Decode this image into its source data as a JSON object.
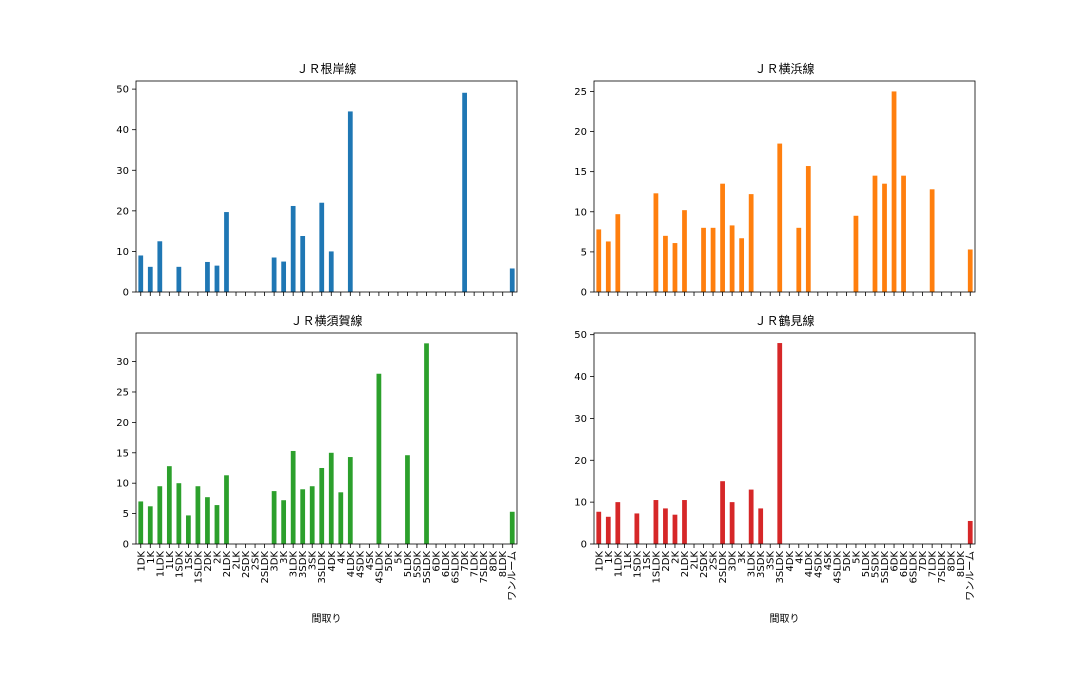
{
  "chart_data": {
    "type": "bar",
    "layout": "2x2 subplots, shared x axis",
    "xlabel": "間取り",
    "categories": [
      "1DK",
      "1K",
      "1LDK",
      "1LK",
      "1SDK",
      "1SK",
      "1SLDK",
      "2DK",
      "2K",
      "2LDK",
      "2LK",
      "2SDK",
      "2SK",
      "2SLDK",
      "3DK",
      "3K",
      "3LDK",
      "3SDK",
      "3SK",
      "3SLDK",
      "4DK",
      "4K",
      "4LDK",
      "4SDK",
      "4SK",
      "4SLDK",
      "5DK",
      "5K",
      "5LDK",
      "5SDK",
      "5SLDK",
      "6DK",
      "6LDK",
      "6SLDK",
      "7DK",
      "7LDK",
      "7SLDK",
      "8DK",
      "8LDK",
      "ワンルーム"
    ],
    "subplots": [
      {
        "title": "ＪＲ根岸線",
        "color": "#1f77b4",
        "ylim": [
          0,
          52
        ],
        "yticks": [
          0,
          10,
          20,
          30,
          40,
          50
        ],
        "values": [
          9.0,
          6.2,
          12.5,
          0,
          6.2,
          0,
          0,
          7.4,
          6.5,
          19.7,
          0,
          0,
          0,
          0,
          8.5,
          7.5,
          21.2,
          13.8,
          0,
          22.0,
          10.0,
          0,
          44.5,
          0,
          0,
          0,
          0,
          0,
          0,
          0,
          0,
          0,
          0,
          0,
          49.1,
          0,
          0,
          0,
          0,
          5.8
        ]
      },
      {
        "title": "ＪＲ横浜線",
        "color": "#ff7f0e",
        "ylim": [
          0,
          26.3
        ],
        "yticks": [
          0,
          5,
          10,
          15,
          20,
          25
        ],
        "values": [
          7.8,
          6.3,
          9.7,
          0,
          0,
          0,
          12.3,
          7.0,
          6.1,
          10.2,
          0,
          8.0,
          8.0,
          13.5,
          8.3,
          6.7,
          12.2,
          0,
          0,
          18.5,
          0,
          8.0,
          15.7,
          0,
          0,
          0,
          0,
          9.5,
          0,
          14.5,
          13.5,
          25.0,
          14.5,
          0,
          0,
          12.8,
          0,
          0,
          0,
          5.3
        ]
      },
      {
        "title": "ＪＲ横須賀線",
        "color": "#2ca02c",
        "ylim": [
          0,
          34.7
        ],
        "yticks": [
          0,
          5,
          10,
          15,
          20,
          25,
          30
        ],
        "values": [
          7.0,
          6.2,
          9.5,
          12.8,
          10.0,
          4.7,
          9.5,
          7.7,
          6.4,
          11.3,
          0,
          0,
          0,
          0,
          8.7,
          7.2,
          15.3,
          9.0,
          9.5,
          12.5,
          15.0,
          8.5,
          14.3,
          0,
          0,
          28.0,
          0,
          0,
          14.6,
          0,
          33.0,
          0,
          0,
          0,
          0,
          0,
          0,
          0,
          0,
          5.3
        ]
      },
      {
        "title": "ＪＲ鶴見線",
        "color": "#d62728",
        "ylim": [
          0,
          50.4
        ],
        "yticks": [
          0,
          10,
          20,
          30,
          40,
          50
        ],
        "values": [
          7.7,
          6.5,
          10.0,
          0,
          7.3,
          0,
          10.5,
          8.5,
          7.0,
          10.5,
          0,
          0,
          0,
          15.0,
          10.0,
          0,
          13.0,
          8.5,
          0,
          48.0,
          0,
          0,
          0,
          0,
          0,
          0,
          0,
          0,
          0,
          0,
          0,
          0,
          0,
          0,
          0,
          0,
          0,
          0,
          0,
          5.5
        ]
      }
    ]
  }
}
